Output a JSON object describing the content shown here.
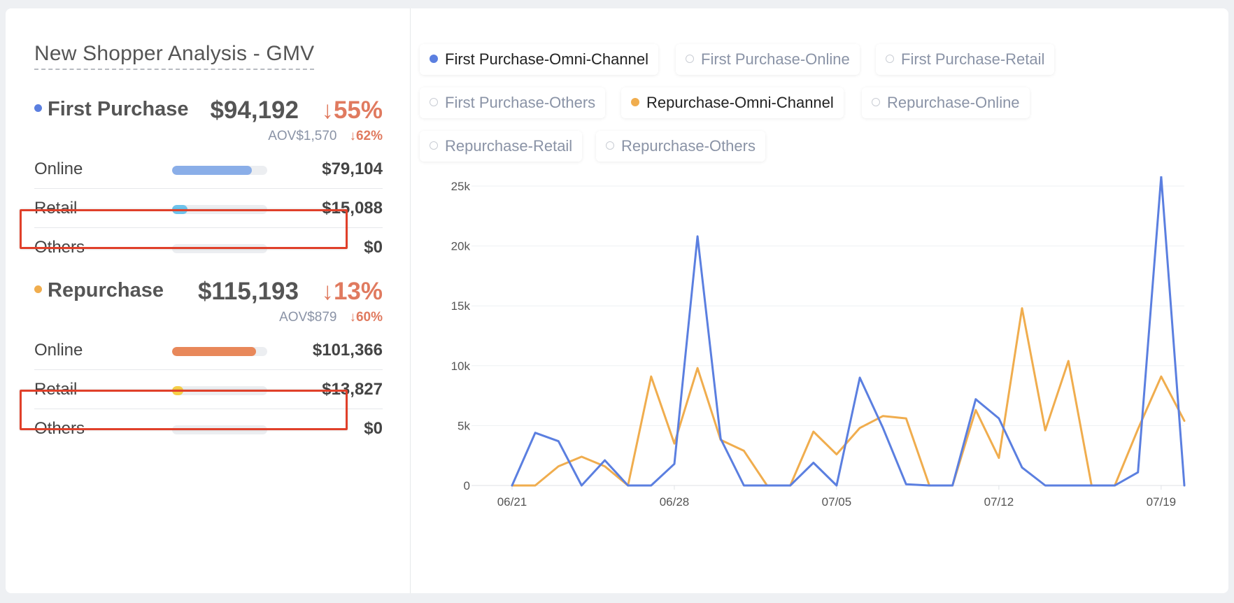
{
  "title": "New Shopper Analysis - GMV",
  "colors": {
    "first_purchase": "#5b7fe0",
    "repurchase": "#f0ad4e",
    "down_trend": "#e07a5f",
    "highlight_box": "#e0402a"
  },
  "first_purchase": {
    "name": "First Purchase",
    "total": "$94,192",
    "change": "↓55%",
    "aov_label": "AOV$1,570",
    "aov_change": "↓62%",
    "rows": [
      {
        "label": "Online",
        "value": "$79,104",
        "share": 0.84,
        "color": "#8aaee8"
      },
      {
        "label": "Retail",
        "value": "$15,088",
        "share": 0.16,
        "color": "#6ec3ec"
      },
      {
        "label": "Others",
        "value": "$0",
        "share": 0,
        "color": "#eceef1"
      }
    ]
  },
  "repurchase": {
    "name": "Repurchase",
    "total": "$115,193",
    "change": "↓13%",
    "aov_label": "AOV$879",
    "aov_change": "↓60%",
    "rows": [
      {
        "label": "Online",
        "value": "$101,366",
        "share": 0.88,
        "color": "#e8885a"
      },
      {
        "label": "Retail",
        "value": "$13,827",
        "share": 0.12,
        "color": "#f6cf48"
      },
      {
        "label": "Others",
        "value": "$0",
        "share": 0,
        "color": "#eceef1"
      }
    ]
  },
  "legend": [
    {
      "label": "First Purchase-Omni-Channel",
      "active": true,
      "color": "#5b7fe0"
    },
    {
      "label": "First Purchase-Online",
      "active": false
    },
    {
      "label": "First Purchase-Retail",
      "active": false
    },
    {
      "label": "First Purchase-Others",
      "active": false
    },
    {
      "label": "Repurchase-Omni-Channel",
      "active": true,
      "color": "#f0ad4e"
    },
    {
      "label": "Repurchase-Online",
      "active": false
    },
    {
      "label": "Repurchase-Retail",
      "active": false
    },
    {
      "label": "Repurchase-Others",
      "active": false
    }
  ],
  "chart_data": {
    "type": "line",
    "x": [
      "06/21",
      "06/22",
      "06/23",
      "06/24",
      "06/25",
      "06/26",
      "06/27",
      "06/28",
      "06/29",
      "06/30",
      "07/01",
      "07/02",
      "07/03",
      "07/04",
      "07/05",
      "07/06",
      "07/07",
      "07/08",
      "07/09",
      "07/10",
      "07/11",
      "07/12",
      "07/13",
      "07/14",
      "07/15",
      "07/16",
      "07/17",
      "07/18",
      "07/19",
      "07/20"
    ],
    "x_tick_labels": [
      "06/21",
      "06/28",
      "07/05",
      "07/12",
      "07/19"
    ],
    "y_tick_labels": [
      "0",
      "5k",
      "10k",
      "15k",
      "20k",
      "25k"
    ],
    "ylim": [
      0,
      25000
    ],
    "grid": true,
    "series": [
      {
        "name": "First Purchase-Omni-Channel",
        "color": "#5b7fe0",
        "values": [
          0,
          4400,
          3700,
          0,
          2100,
          0,
          0,
          1800,
          20800,
          3900,
          0,
          0,
          0,
          1900,
          0,
          9000,
          4800,
          100,
          0,
          0,
          7200,
          5600,
          1500,
          0,
          0,
          0,
          0,
          1100,
          25800,
          0
        ]
      },
      {
        "name": "Repurchase-Omni-Channel",
        "color": "#f0ad4e",
        "values": [
          0,
          0,
          1600,
          2400,
          1600,
          0,
          9100,
          3500,
          9800,
          3800,
          2900,
          0,
          0,
          4500,
          2600,
          4800,
          5800,
          5600,
          0,
          0,
          6300,
          2300,
          14800,
          4600,
          10400,
          0,
          0,
          4700,
          9100,
          5400
        ]
      }
    ]
  }
}
